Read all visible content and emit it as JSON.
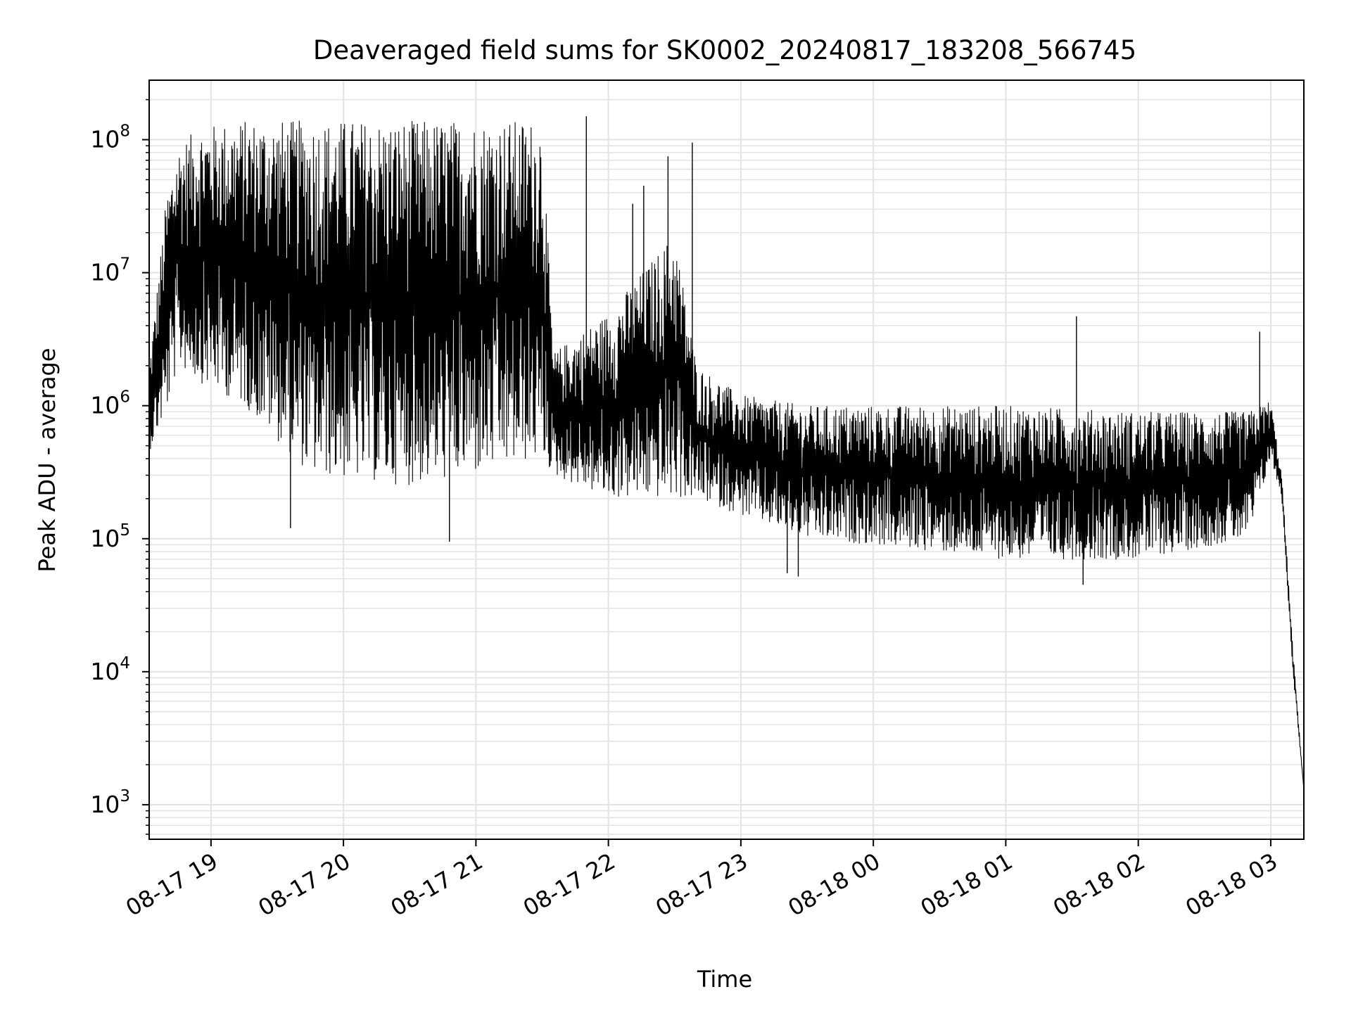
{
  "chart_data": {
    "type": "line",
    "title": "Deaveraged field sums for SK0002_20240817_183208_566745",
    "xlabel": "Time",
    "ylabel": "Peak ADU - average",
    "yscale": "log",
    "grid": true,
    "line_color": "#000000",
    "grid_color": "#e3e3e3",
    "xlim": [
      "2024-08-17 18:32",
      "2024-08-18 03:15"
    ],
    "ylim": [
      550,
      280000000
    ],
    "x_ticks": [
      "08-17 19",
      "08-17 20",
      "08-17 21",
      "08-17 22",
      "08-17 23",
      "08-18 00",
      "08-18 01",
      "08-18 02",
      "08-18 03"
    ],
    "y_ticks": [
      {
        "value": 1000,
        "base": "10",
        "exp": "3"
      },
      {
        "value": 10000,
        "base": "10",
        "exp": "4"
      },
      {
        "value": 100000,
        "base": "10",
        "exp": "5"
      },
      {
        "value": 1000000,
        "base": "10",
        "exp": "6"
      },
      {
        "value": 10000000,
        "base": "10",
        "exp": "7"
      },
      {
        "value": 100000000,
        "base": "10",
        "exp": "8"
      }
    ],
    "series": [
      {
        "envelope": [
          {
            "t": "2024-08-17 18:32",
            "upper": 2000000,
            "lower": 450000
          },
          {
            "t": "2024-08-17 18:40",
            "upper": 40000000,
            "lower": 900000
          },
          {
            "t": "2024-08-17 18:45",
            "upper": 90000000,
            "lower": 2000000
          },
          {
            "t": "2024-08-17 18:55",
            "upper": 125000000,
            "lower": 1500000
          },
          {
            "t": "2024-08-17 19:15",
            "upper": 140000000,
            "lower": 1000000
          },
          {
            "t": "2024-08-17 19:45",
            "upper": 140000000,
            "lower": 300000
          },
          {
            "t": "2024-08-17 20:30",
            "upper": 140000000,
            "lower": 250000
          },
          {
            "t": "2024-08-17 21:00",
            "upper": 140000000,
            "lower": 300000
          },
          {
            "t": "2024-08-17 21:30",
            "upper": 140000000,
            "lower": 400000
          },
          {
            "t": "2024-08-17 21:35",
            "upper": 2500000,
            "lower": 300000
          },
          {
            "t": "2024-08-17 22:00",
            "upper": 5000000,
            "lower": 200000
          },
          {
            "t": "2024-08-17 22:30",
            "upper": 20000000,
            "lower": 200000
          },
          {
            "t": "2024-08-17 22:40",
            "upper": 2000000,
            "lower": 200000
          },
          {
            "t": "2024-08-17 23:00",
            "upper": 1200000,
            "lower": 150000
          },
          {
            "t": "2024-08-17 23:30",
            "upper": 1000000,
            "lower": 100000
          },
          {
            "t": "2024-08-18 00:00",
            "upper": 1000000,
            "lower": 90000
          },
          {
            "t": "2024-08-18 01:00",
            "upper": 1000000,
            "lower": 70000
          },
          {
            "t": "2024-08-18 02:00",
            "upper": 900000,
            "lower": 70000
          },
          {
            "t": "2024-08-18 02:50",
            "upper": 900000,
            "lower": 100000
          },
          {
            "t": "2024-08-18 03:00",
            "upper": 1100000,
            "lower": 400000
          },
          {
            "t": "2024-08-18 03:05",
            "upper": 300000,
            "lower": 200000
          },
          {
            "t": "2024-08-18 03:10",
            "upper": 15000,
            "lower": 10000
          },
          {
            "t": "2024-08-18 03:15",
            "upper": 1300,
            "lower": 1300
          }
        ],
        "spikes": [
          {
            "t": "2024-08-17 21:50",
            "value": 150000000
          },
          {
            "t": "2024-08-17 22:27",
            "value": 75000000
          },
          {
            "t": "2024-08-17 22:38",
            "value": 95000000
          },
          {
            "t": "2024-08-17 22:16",
            "value": 45000000
          },
          {
            "t": "2024-08-17 22:11",
            "value": 33000000
          },
          {
            "t": "2024-08-18 01:32",
            "value": 4700000
          },
          {
            "t": "2024-08-18 02:55",
            "value": 3600000
          },
          {
            "t": "2024-08-18 01:35",
            "value": 45000
          },
          {
            "t": "2024-08-17 23:21",
            "value": 55000
          },
          {
            "t": "2024-08-17 23:26",
            "value": 52000
          },
          {
            "t": "2024-08-17 19:36",
            "value": 120000
          },
          {
            "t": "2024-08-17 20:48",
            "value": 95000
          }
        ]
      }
    ]
  }
}
